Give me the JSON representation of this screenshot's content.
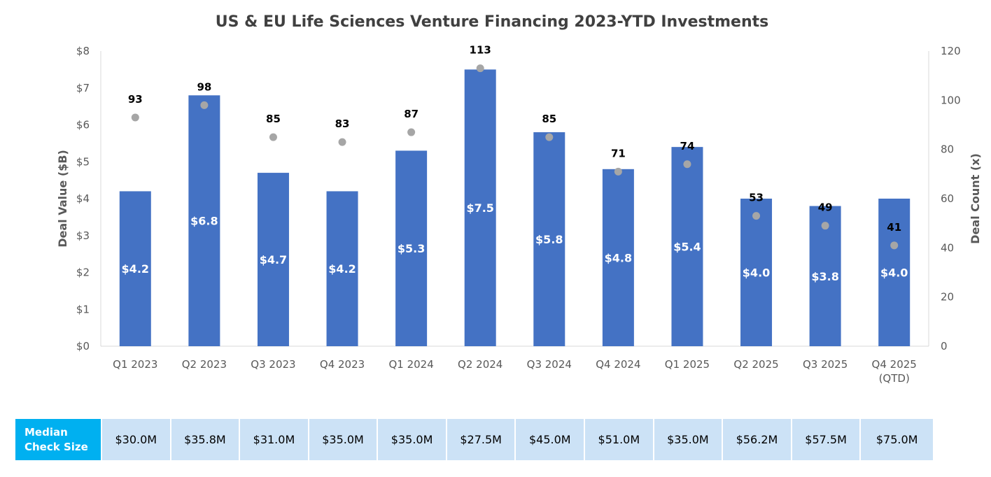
{
  "chart_data": {
    "type": "bar",
    "title": "US & EU Life Sciences Venture Financing 2023-YTD Investments",
    "categories": [
      "Q1 2023",
      "Q2 2023",
      "Q3 2023",
      "Q4 2023",
      "Q1 2024",
      "Q2 2024",
      "Q3 2024",
      "Q4 2024",
      "Q1 2025",
      "Q2 2025",
      "Q3 2025",
      "Q4 2025\n(QTD)"
    ],
    "series": [
      {
        "name": "",
        "type": "bar",
        "axis": "left",
        "color": "#4472C4",
        "values": [
          4.2,
          6.8,
          4.7,
          4.2,
          5.3,
          7.5,
          5.8,
          4.8,
          5.4,
          4.0,
          3.8,
          4.0
        ],
        "labels": [
          "$4.2",
          "$6.8",
          "$4.7",
          "$4.2",
          "$5.3",
          "$7.5",
          "$5.8",
          "$4.8",
          "$5.4",
          "$4.0",
          "$3.8",
          "$4.0"
        ]
      },
      {
        "name": "",
        "type": "scatter",
        "axis": "right",
        "color": "#A6A6A6",
        "values": [
          93,
          98,
          85,
          83,
          87,
          113,
          85,
          71,
          74,
          53,
          49,
          41
        ],
        "labels": [
          "93",
          "98",
          "85",
          "83",
          "87",
          "113",
          "85",
          "71",
          "74",
          "53",
          "49",
          "41"
        ]
      }
    ],
    "ylabel": "Deal Value ($B)",
    "ylim": [
      0,
      8
    ],
    "yticks": [
      "$0",
      "$1",
      "$2",
      "$3",
      "$4",
      "$5",
      "$6",
      "$7",
      "$8"
    ],
    "y2label": "Deal Count (x)",
    "y2lim": [
      0,
      120
    ],
    "y2ticks": [
      "0",
      "20",
      "40",
      "60",
      "80",
      "100",
      "120"
    ],
    "grid": false,
    "legend": "none"
  },
  "median_table": {
    "header": [
      "Median",
      "Check Size"
    ],
    "header_color": "#00B0F0",
    "cell_color": "#CCE2F6",
    "values": [
      "$30.0M",
      "$35.8M",
      "$31.0M",
      "$35.0M",
      "$35.0M",
      "$27.5M",
      "$45.0M",
      "$51.0M",
      "$35.0M",
      "$56.2M",
      "$57.5M",
      "$75.0M"
    ]
  }
}
